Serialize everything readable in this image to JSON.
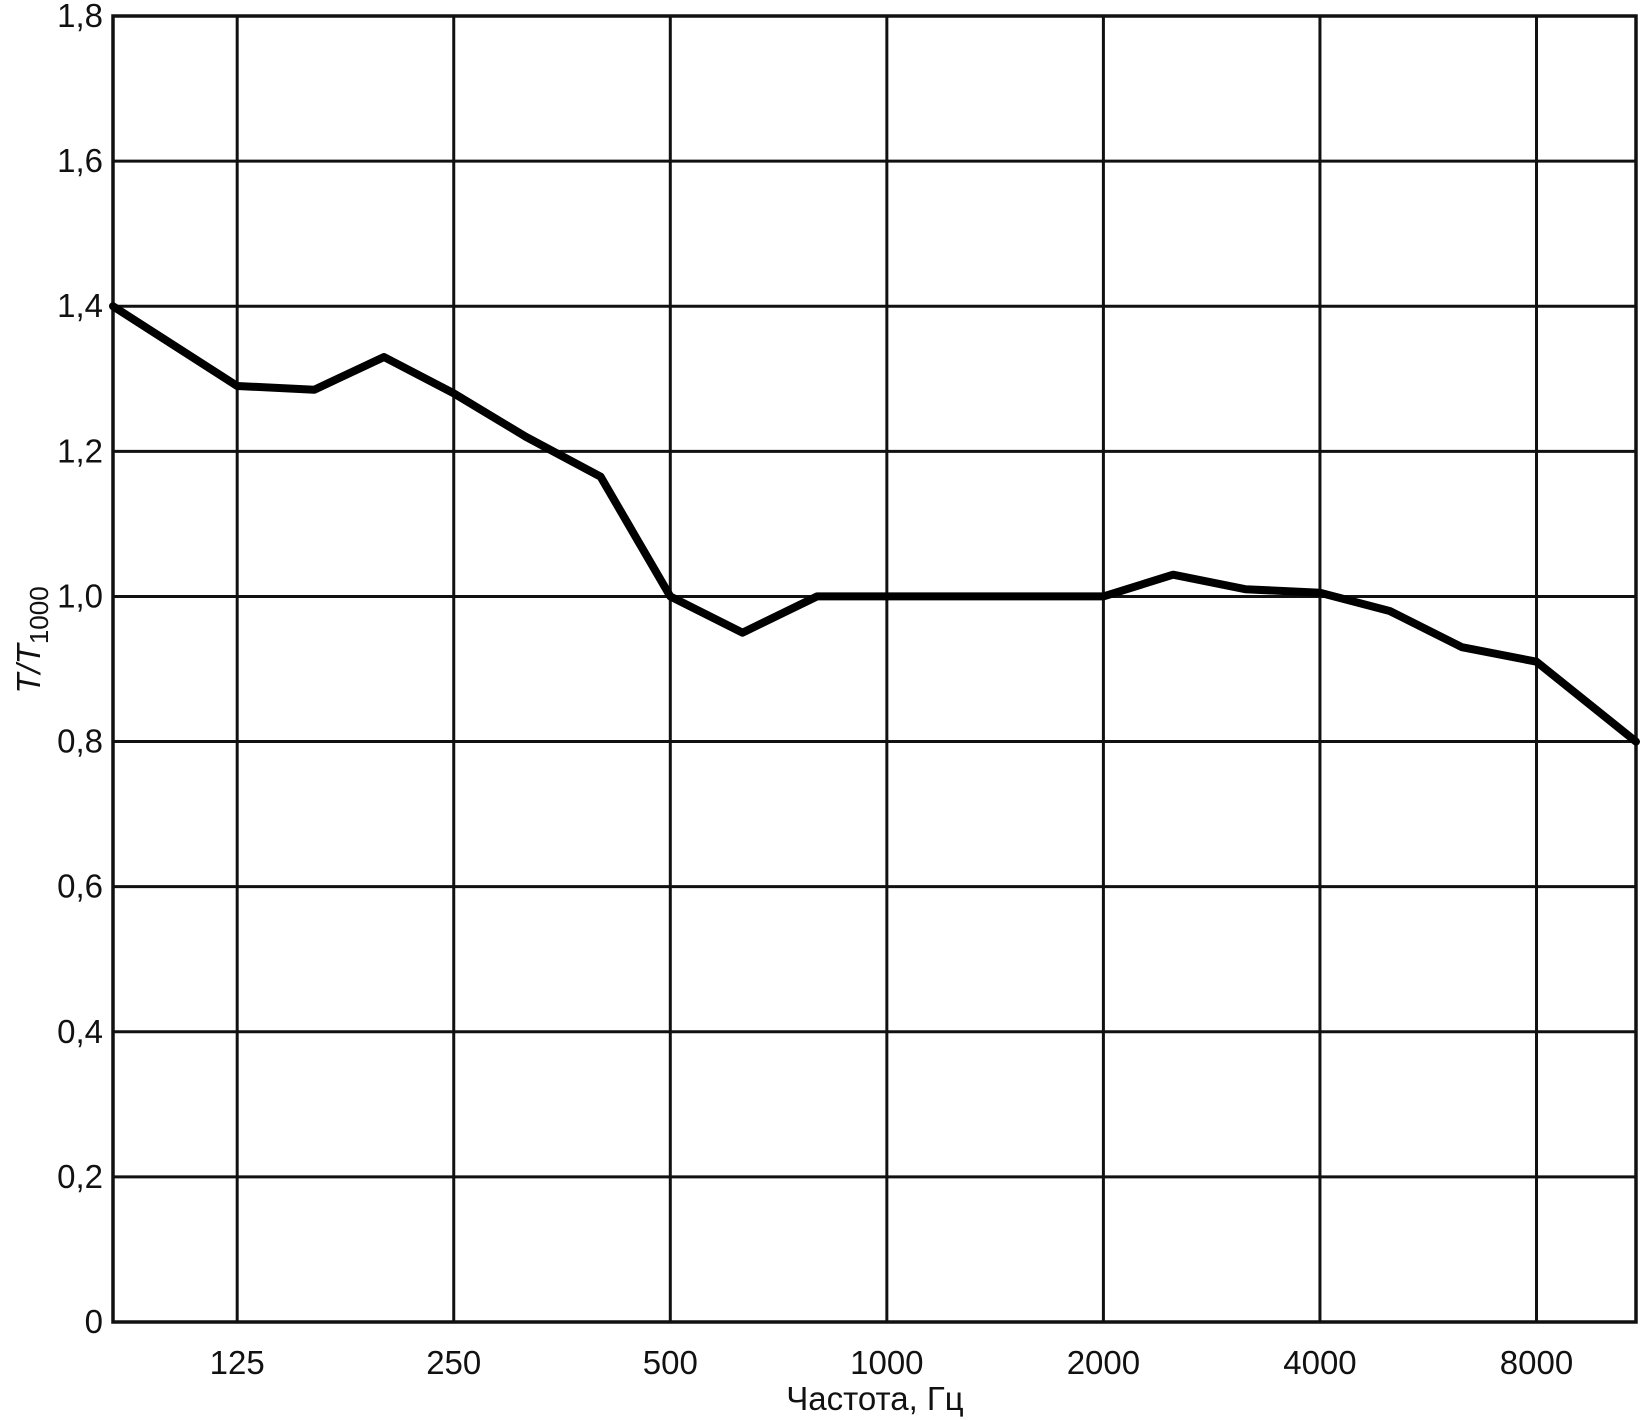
{
  "chart_data": {
    "type": "line",
    "xlabel": "Частота, Гц",
    "ylabel_main": "T/T",
    "ylabel_sub": "1000",
    "x_scale": "log2",
    "x_ticks": [
      125,
      250,
      500,
      1000,
      2000,
      4000,
      8000
    ],
    "x_tick_labels": [
      "125",
      "250",
      "500",
      "1000",
      "2000",
      "4000",
      "8000"
    ],
    "xlim": [
      84,
      11000
    ],
    "ylim": [
      0,
      1.8
    ],
    "y_ticks": [
      0,
      0.2,
      0.4,
      0.6,
      0.8,
      1.0,
      1.2,
      1.4,
      1.6,
      1.8
    ],
    "y_tick_labels": [
      "0",
      "0,2",
      "0,4",
      "0,6",
      "0,8",
      "1,0",
      "1,2",
      "1,4",
      "1,6",
      "1,8"
    ],
    "grid": true,
    "series": [
      {
        "x": [
          84,
          125,
          160,
          200,
          250,
          315,
          400,
          500,
          630,
          800,
          1000,
          1250,
          1600,
          2000,
          2500,
          3150,
          4000,
          5000,
          6300,
          8000,
          11000
        ],
        "y": [
          1.4,
          1.29,
          1.285,
          1.33,
          1.28,
          1.22,
          1.165,
          1.0,
          0.95,
          1.0,
          1.0,
          1.0,
          1.0,
          1.0,
          1.03,
          1.01,
          1.005,
          0.98,
          0.93,
          0.91,
          0.8
        ]
      }
    ]
  }
}
